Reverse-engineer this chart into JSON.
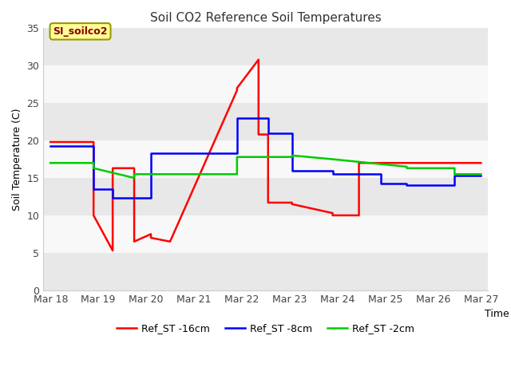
{
  "title": "Soil CO2 Reference Soil Temperatures",
  "xlabel": "Time",
  "ylabel": "Soil Temperature (C)",
  "ylim": [
    0,
    35
  ],
  "xlim": [
    -0.15,
    9.15
  ],
  "x_ticks": [
    0,
    1,
    2,
    3,
    4,
    5,
    6,
    7,
    8,
    9
  ],
  "x_tick_labels": [
    "Mar 18",
    "Mar 19",
    "Mar 20",
    "Mar 21",
    "Mar 22",
    "Mar 23",
    "Mar 24",
    "Mar 25",
    "Mar 26",
    "Mar 27"
  ],
  "y_ticks": [
    0,
    5,
    10,
    15,
    20,
    25,
    30,
    35
  ],
  "annotation_text": "SI_soilco2",
  "figure_bg": "#ffffff",
  "axes_bg": "#f0f0f0",
  "band_colors": [
    "#e8e8e8",
    "#f8f8f8"
  ],
  "series": [
    {
      "label": "Ref_ST -16cm",
      "color": "#ff0000",
      "linewidth": 1.8,
      "x": [
        0,
        0.9,
        0.9,
        1.3,
        1.3,
        1.75,
        1.75,
        2.1,
        2.1,
        2.5,
        2.5,
        3.9,
        3.9,
        4.35,
        4.35,
        4.55,
        4.55,
        5.05,
        5.05,
        5.9,
        5.9,
        6.45,
        6.45,
        7.45,
        7.45,
        8.45,
        8.45,
        9.0
      ],
      "y": [
        19.8,
        19.8,
        10.0,
        5.3,
        16.3,
        16.3,
        6.5,
        7.5,
        7.0,
        6.5,
        6.5,
        26.7,
        27.0,
        30.8,
        20.8,
        20.8,
        11.7,
        11.7,
        11.5,
        10.3,
        10.0,
        10.0,
        17.0,
        17.0,
        17.0,
        17.0,
        17.0,
        17.0
      ]
    },
    {
      "label": "Ref_ST -8cm",
      "color": "#0000ff",
      "linewidth": 1.8,
      "x": [
        0,
        0.9,
        0.9,
        1.3,
        1.3,
        2.1,
        2.1,
        3.9,
        3.9,
        4.55,
        4.55,
        5.05,
        5.05,
        5.9,
        5.9,
        6.9,
        6.9,
        7.45,
        7.45,
        8.45,
        8.45,
        9.0
      ],
      "y": [
        19.3,
        19.3,
        13.5,
        13.5,
        12.3,
        12.3,
        18.3,
        18.3,
        23.0,
        23.0,
        21.0,
        21.0,
        16.0,
        16.0,
        15.5,
        15.5,
        14.2,
        14.2,
        14.0,
        14.0,
        15.3,
        15.3
      ]
    },
    {
      "label": "Ref_ST -2cm",
      "color": "#00cc00",
      "linewidth": 1.8,
      "x": [
        0,
        0.9,
        0.9,
        1.75,
        1.75,
        3.9,
        3.9,
        5.05,
        5.05,
        5.9,
        5.9,
        7.45,
        7.45,
        8.45,
        8.45,
        9.0
      ],
      "y": [
        17.0,
        17.0,
        16.3,
        15.0,
        15.5,
        15.5,
        17.8,
        17.8,
        18.0,
        17.5,
        17.5,
        16.5,
        16.3,
        16.3,
        15.5,
        15.5
      ]
    }
  ]
}
